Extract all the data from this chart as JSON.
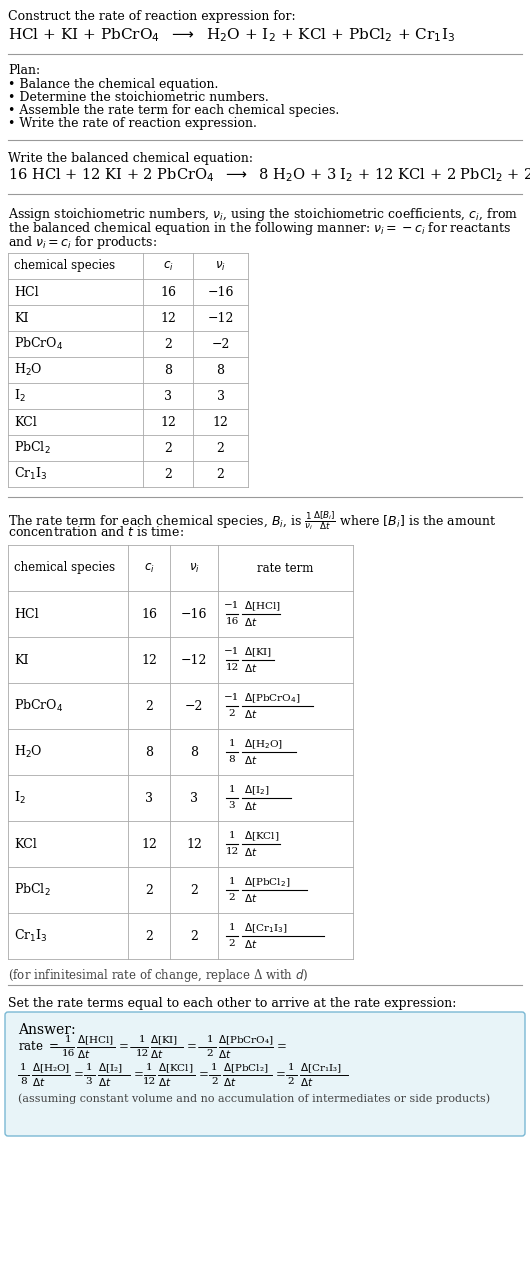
{
  "bg_color": "#ffffff",
  "text_color": "#000000",
  "title_line1": "Construct the rate of reaction expression for:",
  "plan_title": "Plan:",
  "plan_items": [
    "• Balance the chemical equation.",
    "• Determine the stoichiometric numbers.",
    "• Assemble the rate term for each chemical species.",
    "• Write the rate of reaction expression."
  ],
  "balanced_label": "Write the balanced chemical equation:",
  "stoich_intro_lines": [
    "Assign stoichiometric numbers, $\\nu_i$, using the stoichiometric coefficients, $c_i$, from",
    "the balanced chemical equation in the following manner: $\\nu_i = -c_i$ for reactants",
    "and $\\nu_i = c_i$ for products:"
  ],
  "table1_headers": [
    "chemical species",
    "$c_i$",
    "$\\nu_i$"
  ],
  "table1_data": [
    [
      "HCl",
      "16",
      "−16"
    ],
    [
      "KI",
      "12",
      "−12"
    ],
    [
      "PbCrO$_4$",
      "2",
      "−2"
    ],
    [
      "H$_2$O",
      "8",
      "8"
    ],
    [
      "I$_2$",
      "3",
      "3"
    ],
    [
      "KCl",
      "12",
      "12"
    ],
    [
      "PbCl$_2$",
      "2",
      "2"
    ],
    [
      "Cr$_1$I$_3$",
      "2",
      "2"
    ]
  ],
  "rate_intro_lines": [
    "The rate term for each chemical species, $B_i$, is $\\frac{1}{\\nu_i}\\frac{\\Delta[B_i]}{\\Delta t}$ where $[B_i]$ is the amount",
    "concentration and $t$ is time:"
  ],
  "table2_headers": [
    "chemical species",
    "$c_i$",
    "$\\nu_i$",
    "rate term"
  ],
  "table2_col1": [
    "HCl",
    "KI",
    "PbCrO$_4$",
    "H$_2$O",
    "I$_2$",
    "KCl",
    "PbCl$_2$",
    "Cr$_1$I$_3$"
  ],
  "table2_col2": [
    "16",
    "12",
    "2",
    "8",
    "3",
    "12",
    "2",
    "2"
  ],
  "table2_col3": [
    "−16",
    "−12",
    "−2",
    "8",
    "3",
    "12",
    "2",
    "2"
  ],
  "table2_rate_num": [
    "−1",
    "−1",
    "−1",
    "1",
    "1",
    "1",
    "1",
    "1"
  ],
  "table2_rate_den": [
    "16",
    "12",
    "2",
    "8",
    "3",
    "12",
    "2",
    "2"
  ],
  "table2_rate_species": [
    "[HCl]",
    "[KI]",
    "[PbCrO$_4$]",
    "[H$_2$O]",
    "[I$_2$]",
    "[KCl]",
    "[PbCl$_2$]",
    "[Cr$_1$I$_3$]"
  ],
  "infinitesimal_note": "(for infinitesimal rate of change, replace Δ with $d$)",
  "set_rate_text": "Set the rate terms equal to each other to arrive at the rate expression:",
  "answer_box_color": "#e8f4f8",
  "answer_box_border": "#7ab8d4",
  "answer_footnote": "(assuming constant volume and no accumulation of intermediates or side products)"
}
